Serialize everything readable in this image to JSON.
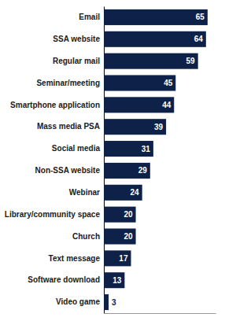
{
  "chart_data": {
    "type": "bar",
    "orientation": "horizontal",
    "categories": [
      "Email",
      "SSA website",
      "Regular mail",
      "Seminar/meeting",
      "Smartphone application",
      "Mass media PSA",
      "Social media",
      "Non-SSA website",
      "Webinar",
      "Library/community space",
      "Church",
      "Text message",
      "Software download",
      "Video game"
    ],
    "values": [
      65,
      64,
      59,
      45,
      44,
      39,
      31,
      29,
      24,
      20,
      20,
      17,
      13,
      3
    ],
    "color": "#0d2149",
    "xlim": [
      0,
      70
    ],
    "data_labels": true,
    "tick_labels": "y",
    "grid": false
  }
}
